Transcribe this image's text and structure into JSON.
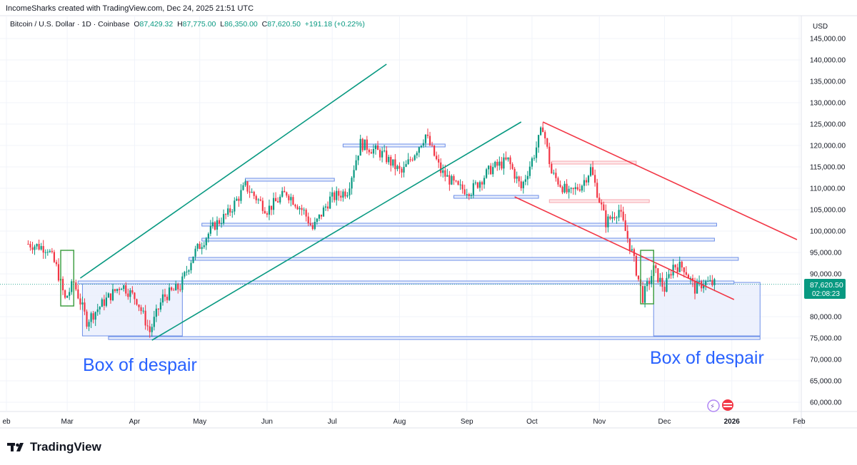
{
  "header": {
    "credit": "IncomeSharks created with TradingView.com, Dec 24, 2025 21:51 UTC"
  },
  "legend": {
    "symbol": "Bitcoin / U.S. Dollar · 1D · Coinbase",
    "o_label": "O",
    "o_value": "87,429.32",
    "h_label": "H",
    "h_value": "87,775.00",
    "l_label": "L",
    "l_value": "86,350.00",
    "c_label": "C",
    "c_value": "87,620.50",
    "change": "+191.18 (+0.22%)"
  },
  "price_axis": {
    "currency": "USD",
    "current_price": "87,620.50",
    "countdown": "02:08:23"
  },
  "annotations": {
    "left_box": "Box of despair",
    "right_box": "Box of despair"
  },
  "footer": {
    "brand": "TradingView"
  },
  "colors": {
    "up": "#089981",
    "down": "#f23645",
    "channel": "#089981",
    "downtrend": "#f23645",
    "level": "#6d8fe8",
    "box_fill": "#e8eefc",
    "label_blue": "#2962ff"
  },
  "chart_data": {
    "type": "candlestick",
    "symbol": "BTCUSD",
    "interval": "1D",
    "x_ticks": [
      "eb",
      "Mar",
      "Apr",
      "May",
      "Jun",
      "Jul",
      "Aug",
      "Sep",
      "Oct",
      "Nov",
      "Dec",
      "2026",
      "Feb"
    ],
    "y_ticks": [
      "60,000.00",
      "65,000.00",
      "70,000.00",
      "75,000.00",
      "80,000.00",
      "85,000.00",
      "90,000.00",
      "95,000.00",
      "100,000.00",
      "105,000.00",
      "110,000.00",
      "115,000.00",
      "120,000.00",
      "125,000.00",
      "130,000.00",
      "135,000.00",
      "140,000.00",
      "145,000.00"
    ],
    "y_range": [
      57500,
      149000
    ],
    "last_close": 87620.5,
    "path": [
      [
        "2025-02-11",
        97000
      ],
      [
        "2025-02-20",
        96000
      ],
      [
        "2025-02-24",
        91500
      ],
      [
        "2025-02-28",
        84000
      ],
      [
        "2025-03-04",
        88000
      ],
      [
        "2025-03-10",
        79000
      ],
      [
        "2025-03-18",
        83500
      ],
      [
        "2025-03-26",
        87500
      ],
      [
        "2025-04-02",
        84000
      ],
      [
        "2025-04-08",
        76500
      ],
      [
        "2025-04-14",
        84500
      ],
      [
        "2025-04-22",
        87000
      ],
      [
        "2025-04-28",
        94500
      ],
      [
        "2025-05-08",
        101500
      ],
      [
        "2025-05-14",
        104000
      ],
      [
        "2025-05-22",
        110500
      ],
      [
        "2025-06-01",
        105000
      ],
      [
        "2025-06-10",
        109000
      ],
      [
        "2025-06-18",
        104500
      ],
      [
        "2025-06-22",
        100500
      ],
      [
        "2025-06-30",
        107500
      ],
      [
        "2025-07-08",
        109500
      ],
      [
        "2025-07-14",
        120500
      ],
      [
        "2025-07-24",
        118000
      ],
      [
        "2025-08-02",
        113500
      ],
      [
        "2025-08-13",
        122500
      ],
      [
        "2025-08-20",
        114000
      ],
      [
        "2025-08-28",
        110000
      ],
      [
        "2025-09-03",
        109500
      ],
      [
        "2025-09-12",
        114500
      ],
      [
        "2025-09-20",
        116500
      ],
      [
        "2025-09-26",
        110000
      ],
      [
        "2025-10-02",
        118000
      ],
      [
        "2025-10-06",
        124500
      ],
      [
        "2025-10-10",
        113500
      ],
      [
        "2025-10-18",
        108500
      ],
      [
        "2025-10-24",
        111000
      ],
      [
        "2025-10-28",
        114500
      ],
      [
        "2025-11-04",
        102000
      ],
      [
        "2025-11-10",
        105000
      ],
      [
        "2025-11-16",
        95000
      ],
      [
        "2025-11-21",
        84500
      ],
      [
        "2025-11-26",
        91000
      ],
      [
        "2025-12-01",
        86500
      ],
      [
        "2025-12-05",
        92000
      ],
      [
        "2025-12-10",
        91500
      ],
      [
        "2025-12-15",
        86500
      ],
      [
        "2025-12-19",
        88000
      ],
      [
        "2025-12-24",
        87620.5
      ]
    ],
    "channel_lines": [
      {
        "from": [
          "2025-03-07",
          89000
        ],
        "to": [
          "2025-07-26",
          139000
        ]
      },
      {
        "from": [
          "2025-04-09",
          74500
        ],
        "to": [
          "2025-09-26",
          125500
        ]
      }
    ],
    "downtrend_lines": [
      {
        "from": [
          "2025-10-06",
          125500
        ],
        "to": [
          "2026-01-31",
          98000
        ]
      },
      {
        "from": [
          "2025-09-23",
          108000
        ],
        "to": [
          "2026-01-02",
          84000
        ]
      }
    ],
    "horizontal_levels": [
      {
        "price": 112000,
        "from": "2025-05-22",
        "to": "2025-07-02"
      },
      {
        "price": 120000,
        "from": "2025-07-06",
        "to": "2025-08-22"
      },
      {
        "price": 108000,
        "from": "2025-08-26",
        "to": "2025-10-04"
      },
      {
        "price": 101500,
        "from": "2025-05-02",
        "to": "2025-12-25"
      },
      {
        "price": 98000,
        "from": "2025-05-02",
        "to": "2025-12-24"
      },
      {
        "price": 93500,
        "from": "2025-04-26",
        "to": "2026-01-04"
      },
      {
        "price": 88000,
        "from": "2025-03-06",
        "to": "2026-01-02"
      },
      {
        "price": 75000,
        "from": "2025-03-20",
        "to": "2026-01-14"
      }
    ],
    "red_levels": [
      {
        "price": 116000,
        "from": "2025-10-10",
        "to": "2025-11-18"
      },
      {
        "price": 107000,
        "from": "2025-10-09",
        "to": "2025-11-24"
      }
    ],
    "zones": [
      {
        "label": "Box of despair",
        "from": "2025-03-08",
        "to": "2025-04-23",
        "low": 75500,
        "high": 88000
      },
      {
        "label": "Box of despair",
        "from": "2025-11-26",
        "to": "2026-01-14",
        "low": 75500,
        "high": 88000
      }
    ],
    "highlight_candles": [
      {
        "from": "2025-02-26",
        "to": "2025-03-04",
        "low": 82500,
        "high": 95500
      },
      {
        "from": "2025-11-20",
        "to": "2025-11-26",
        "low": 83000,
        "high": 95500
      }
    ]
  }
}
